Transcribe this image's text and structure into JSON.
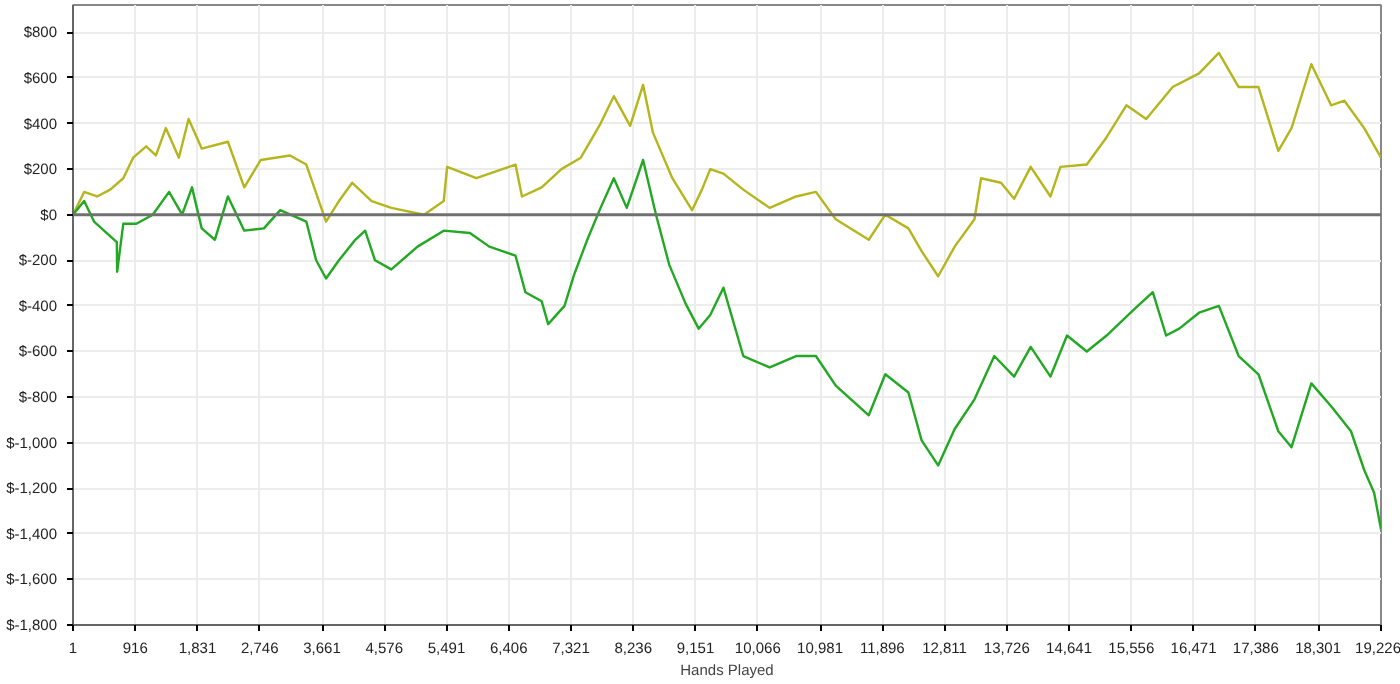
{
  "chart_data": {
    "type": "line",
    "xlabel": "Hands Played",
    "x": [
      1,
      165,
      355,
      548,
      740,
      885,
      1077,
      1220,
      1365,
      1557,
      1700,
      1893,
      2278,
      2518,
      2760,
      3190,
      3430,
      3720,
      3910,
      4105,
      4390,
      4680,
      5160,
      5450,
      5500,
      5930,
      6505,
      6600,
      6890,
      7180,
      7465,
      7755,
      7950,
      8190,
      8380,
      8525,
      8810,
      9100,
      9245,
      9367,
      9561,
      9853,
      10241,
      10629,
      10920,
      11212,
      11697,
      11940,
      12280,
      12474,
      12717,
      12960,
      13251,
      13348,
      13640,
      13834,
      14077,
      14368,
      14514,
      14902,
      15193,
      15484,
      15775,
      16164,
      16552,
      16843,
      17134,
      17425,
      17717,
      17911,
      18202,
      18493,
      18688,
      18979,
      19226
    ],
    "series": [
      {
        "color": "#b5b51e",
        "values": [
          0,
          100,
          80,
          110,
          160,
          250,
          300,
          260,
          380,
          250,
          420,
          290,
          320,
          120,
          240,
          260,
          220,
          -30,
          60,
          140,
          60,
          30,
          0,
          60,
          210,
          160,
          220,
          80,
          120,
          200,
          250,
          400,
          520,
          390,
          570,
          360,
          160,
          20,
          110,
          200,
          180,
          110,
          30,
          80,
          100,
          -20,
          -110,
          0,
          -60,
          -160,
          -270,
          -140,
          -20,
          160,
          140,
          70,
          210,
          80,
          210,
          220,
          340,
          480,
          420,
          560,
          620,
          710,
          560,
          560,
          280,
          380,
          660,
          480,
          500,
          380,
          250
        ]
      },
      {
        "color": "#22a822",
        "x": [
          1,
          165,
          310,
          645,
          650,
          740,
          933,
          1173,
          1413,
          1605,
          1750,
          1893,
          2086,
          2278,
          2518,
          2807,
          3047,
          3430,
          3575,
          3720,
          3910,
          4150,
          4295,
          4440,
          4680,
          5065,
          5450,
          5835,
          6120,
          6505,
          6650,
          6890,
          6985,
          7225,
          7370,
          7560,
          7755,
          7950,
          8140,
          8380,
          8570,
          8765,
          9005,
          9197,
          9367,
          9561,
          9853,
          10241,
          10629,
          10920,
          11212,
          11697,
          11940,
          12280,
          12474,
          12717,
          12960,
          13251,
          13542,
          13834,
          14077,
          14368,
          14611,
          14902,
          15193,
          15581,
          15872,
          16067,
          16261,
          16552,
          16843,
          17134,
          17425,
          17717,
          17911,
          18202,
          18493,
          18785,
          18979,
          19125,
          19226
        ],
        "values": [
          0,
          60,
          -30,
          -120,
          -250,
          -40,
          -40,
          0,
          100,
          0,
          120,
          -60,
          -110,
          80,
          -70,
          -60,
          20,
          -30,
          -200,
          -280,
          -200,
          -110,
          -70,
          -200,
          -240,
          -140,
          -70,
          -80,
          -140,
          -180,
          -340,
          -380,
          -480,
          -400,
          -260,
          -110,
          30,
          160,
          30,
          240,
          0,
          -220,
          -390,
          -500,
          -440,
          -320,
          -620,
          -670,
          -620,
          -620,
          -750,
          -880,
          -700,
          -780,
          -990,
          -1100,
          -940,
          -810,
          -620,
          -710,
          -580,
          -710,
          -530,
          -600,
          -530,
          -420,
          -340,
          -530,
          -500,
          -430,
          -400,
          -620,
          -700,
          -950,
          -1020,
          -740,
          -840,
          -950,
          -1120,
          -1220,
          -1380
        ]
      }
    ],
    "xlim": [
      1,
      19226
    ],
    "xticks": [
      1,
      {
        "value": 916,
        "label": "916"
      },
      {
        "value": 1831,
        "label": "1,831"
      },
      {
        "value": 2746,
        "label": "2,746"
      },
      {
        "value": 3661,
        "label": "3,661"
      },
      {
        "value": 4576,
        "label": "4,576"
      },
      {
        "value": 5491,
        "label": "5,491"
      },
      {
        "value": 6406,
        "label": "6,406"
      },
      {
        "value": 7321,
        "label": "7,321"
      },
      {
        "value": 8236,
        "label": "8,236"
      },
      {
        "value": 9151,
        "label": "9,151"
      },
      {
        "value": 10066,
        "label": "10,066"
      },
      {
        "value": 10981,
        "label": "10,981"
      },
      {
        "value": 11896,
        "label": "11,896"
      },
      {
        "value": 12811,
        "label": "12,811"
      },
      {
        "value": 13726,
        "label": "13,726"
      },
      {
        "value": 14641,
        "label": "14,641"
      },
      {
        "value": 15556,
        "label": "15,556"
      },
      {
        "value": 16471,
        "label": "16,471"
      },
      {
        "value": 17386,
        "label": "17,386"
      },
      {
        "value": 18301,
        "label": "18,301"
      },
      {
        "value": 19226,
        "label": "19,226"
      }
    ],
    "ylim": [
      -1800,
      920
    ],
    "yticks": [
      {
        "value": -1800,
        "label": "$-1,800"
      },
      {
        "value": -1600,
        "label": "$-1,600"
      },
      {
        "value": -1400,
        "label": "$-1,400"
      },
      {
        "value": -1200,
        "label": "$-1,200"
      },
      {
        "value": -1000,
        "label": "$-1,000"
      },
      {
        "value": -800,
        "label": "$-800"
      },
      {
        "value": -600,
        "label": "$-600"
      },
      {
        "value": -400,
        "label": "$-400"
      },
      {
        "value": -200,
        "label": "$-200"
      },
      {
        "value": 0,
        "label": "$0"
      },
      {
        "value": 200,
        "label": "$200"
      },
      {
        "value": 400,
        "label": "$400"
      },
      {
        "value": 600,
        "label": "$600"
      },
      {
        "value": 800,
        "label": "$800"
      }
    ],
    "ref_lines": [
      {
        "axis": "y",
        "value": 0,
        "color": "#707070"
      }
    ],
    "grid": true,
    "marker": "none",
    "line_style": "solid"
  }
}
